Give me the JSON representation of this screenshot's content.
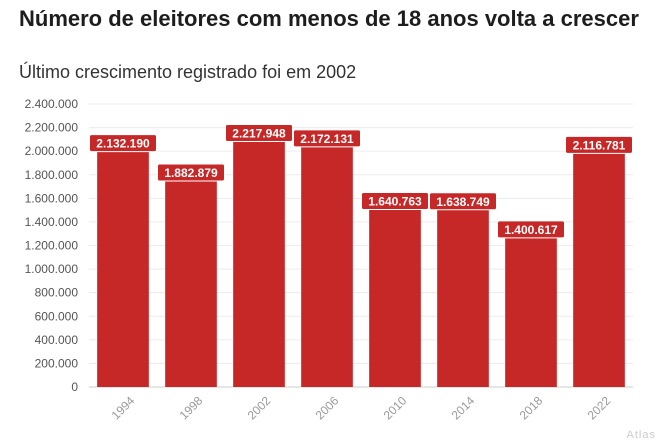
{
  "chart_data": {
    "type": "bar",
    "title": "Número de eleitores com menos de 18 anos volta a crescer",
    "subtitle": "Último crescimento registrado foi em 2002",
    "categories": [
      "1994",
      "1998",
      "2002",
      "2006",
      "2010",
      "2014",
      "2018",
      "2022"
    ],
    "values": [
      2132190,
      1882879,
      2217948,
      2172131,
      1640763,
      1638749,
      1400617,
      2116781
    ],
    "value_labels": [
      "2.132.190",
      "1.882.879",
      "2.217.948",
      "2.172.131",
      "1.640.763",
      "1.638.749",
      "1.400.617",
      "2.116.781"
    ],
    "ylim": [
      0,
      2400000
    ],
    "yticks": [
      0,
      200000,
      400000,
      600000,
      800000,
      1000000,
      1200000,
      1400000,
      1600000,
      1800000,
      2000000,
      2200000,
      2400000
    ],
    "ytick_labels": [
      "0",
      "200.000",
      "400.000",
      "600.000",
      "800.000",
      "1.000.000",
      "1.200.000",
      "1.400.000",
      "1.600.000",
      "1.800.000",
      "2.000.000",
      "2.200.000",
      "2.400.000"
    ],
    "xlabel": "",
    "ylabel": "",
    "grid": true,
    "bar_color": "#c62828",
    "label_bg_color": "#c62828"
  },
  "credit": "Atlas"
}
